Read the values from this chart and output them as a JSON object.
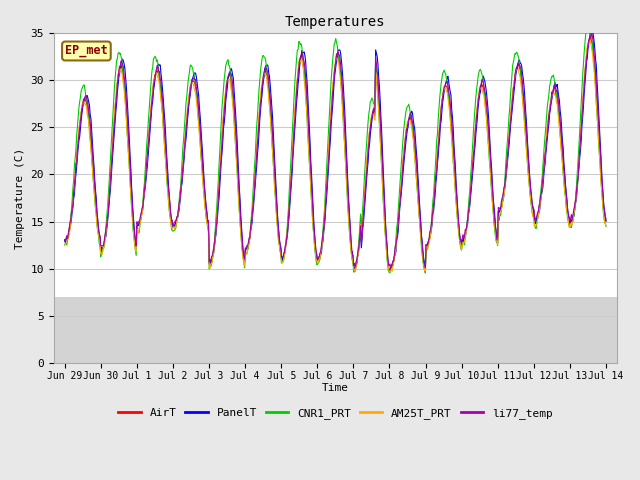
{
  "title": "Temperatures",
  "ylabel": "Temperature (C)",
  "xlabel": "Time",
  "ylim": [
    0,
    35
  ],
  "shade_below": 7.0,
  "shade_color": "#d3d3d3",
  "fig_facecolor": "#e8e8e8",
  "grid_color": "#cccccc",
  "yticks": [
    0,
    5,
    10,
    15,
    20,
    25,
    30,
    35
  ],
  "xtick_labels": [
    "Jun 29",
    "Jun 30",
    "Jul 1",
    "Jul 2",
    "Jul 3",
    "Jul 4",
    "Jul 5",
    "Jul 6",
    "Jul 7",
    "Jul 8",
    "Jul 9",
    "Jul 10",
    "Jul 11",
    "Jul 12",
    "Jul 13",
    "Jul 14"
  ],
  "xtick_positions": [
    0,
    1,
    2,
    3,
    4,
    5,
    6,
    7,
    8,
    9,
    10,
    11,
    12,
    13,
    14,
    15
  ],
  "station_label": "EP_met",
  "legend_entries": [
    {
      "label": "AirT",
      "color": "#ff0000"
    },
    {
      "label": "PanelT",
      "color": "#0000ff"
    },
    {
      "label": "CNR1_PRT",
      "color": "#00cc00"
    },
    {
      "label": "AM25T_PRT",
      "color": "#ffaa00"
    },
    {
      "label": "li77_temp",
      "color": "#aa00aa"
    }
  ],
  "day_peaks": [
    28,
    31.5,
    31,
    30,
    30.5,
    31,
    32.5,
    32.5,
    32.5,
    26,
    29.5,
    29.5,
    31.5,
    29,
    34.5
  ],
  "day_mins": [
    13,
    12,
    14.5,
    14.5,
    10.5,
    12,
    11,
    11,
    10,
    10,
    12.5,
    13,
    16,
    15,
    15
  ],
  "peak_offsets": {
    "AirT": 0.0,
    "PanelT": 0.05,
    "CNR1_PRT": -0.05,
    "AM25T_PRT": -0.02,
    "li77_temp": 0.02
  },
  "peak_mults": {
    "AirT": 1.0,
    "PanelT": 1.02,
    "CNR1_PRT": 1.05,
    "AM25T_PRT": 0.99,
    "li77_temp": 1.01
  },
  "min_mults": {
    "AirT": 1.0,
    "PanelT": 1.0,
    "CNR1_PRT": 0.96,
    "AM25T_PRT": 0.97,
    "li77_temp": 1.02
  }
}
